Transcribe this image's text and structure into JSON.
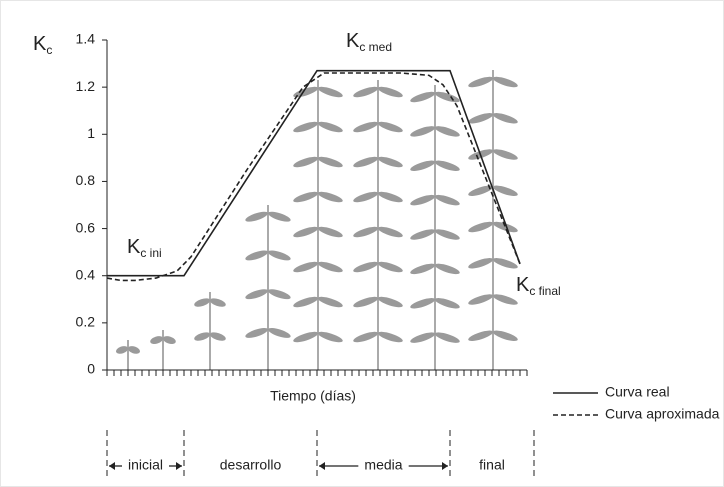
{
  "chart_data": {
    "type": "line",
    "y_label": {
      "main": "K",
      "sub": "c"
    },
    "x_label": "Tiempo (días)",
    "xlim": [
      0,
      61
    ],
    "xticks": [
      0,
      1,
      2,
      3,
      4,
      5,
      6,
      7,
      8,
      9,
      10,
      11,
      12,
      13,
      14,
      15,
      16,
      17,
      18,
      19,
      20,
      21,
      22,
      23,
      24,
      25,
      26,
      27,
      28,
      29,
      30,
      31,
      32,
      33,
      34,
      35,
      36,
      37,
      38,
      39,
      40,
      41,
      42,
      43,
      44,
      45,
      46,
      47,
      48,
      49,
      50,
      51,
      52,
      53,
      54,
      55,
      56,
      57,
      58,
      59,
      60
    ],
    "ylim": [
      0,
      1.4
    ],
    "yticks": [
      0,
      0.2,
      0.4,
      0.6,
      0.8,
      1,
      1.2,
      1.4
    ],
    "series": [
      {
        "name": "Curva real",
        "color": "#222222",
        "dash": false,
        "x": [
          0,
          11,
          30,
          49,
          59
        ],
        "values": [
          0.4,
          0.4,
          1.27,
          1.27,
          0.45
        ]
      },
      {
        "name": "Curva aproximada",
        "color": "#222222",
        "dash": true,
        "x": [
          0,
          2,
          4,
          7,
          10,
          12,
          20,
          28,
          31,
          34,
          42,
          46,
          48,
          50,
          59
        ],
        "values": [
          0.39,
          0.38,
          0.38,
          0.39,
          0.42,
          0.48,
          0.85,
          1.2,
          1.26,
          1.26,
          1.26,
          1.25,
          1.21,
          1.12,
          0.45
        ]
      }
    ],
    "annotations": [
      {
        "main": "K",
        "sub": "c ini"
      },
      {
        "main": "K",
        "sub": "c med"
      },
      {
        "main": "K",
        "sub": "c final"
      }
    ],
    "phases": [
      "inicial",
      "desarrollo",
      "media",
      "final"
    ],
    "phase_bounds": [
      0,
      11,
      30,
      49,
      61
    ]
  }
}
